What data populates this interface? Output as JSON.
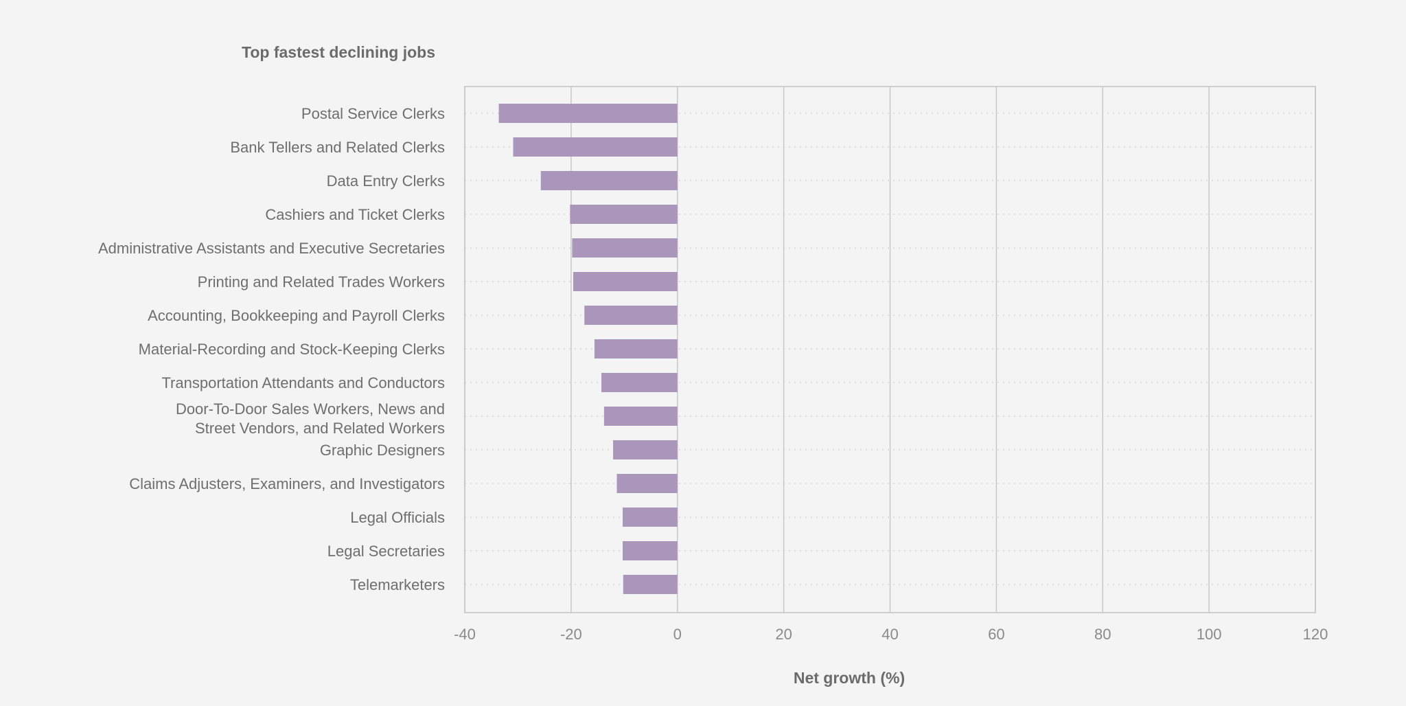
{
  "chart_data": {
    "type": "bar",
    "orientation": "horizontal",
    "title": "Top fastest declining jobs",
    "xlabel": "Net growth (%)",
    "ylabel": "",
    "xlim": [
      -40,
      120
    ],
    "xticks": [
      -40,
      -20,
      0,
      20,
      40,
      60,
      80,
      100,
      120
    ],
    "grid": {
      "vertical": true,
      "horizontal_dotted": true
    },
    "bar_color": "#ab96bb",
    "categories": [
      "Postal Service Clerks",
      "Bank Tellers and Related Clerks",
      "Data Entry Clerks",
      "Cashiers and Ticket Clerks",
      "Administrative Assistants and Executive Secretaries",
      "Printing and Related Trades Workers",
      "Accounting, Bookkeeping and Payroll Clerks",
      "Material-Recording and Stock-Keeping Clerks",
      "Transportation Attendants and Conductors",
      "Door-To-Door Sales Workers, News and\nStreet Vendors, and Related Workers",
      "Graphic Designers",
      "Claims Adjusters, Examiners, and Investigators",
      "Legal Officials",
      "Legal Secretaries",
      "Telemarketers"
    ],
    "values": [
      -33.6,
      -30.9,
      -25.7,
      -20.2,
      -19.8,
      -19.6,
      -17.5,
      -15.6,
      -14.3,
      -13.8,
      -12.1,
      -11.4,
      -10.3,
      -10.3,
      -10.2
    ]
  }
}
